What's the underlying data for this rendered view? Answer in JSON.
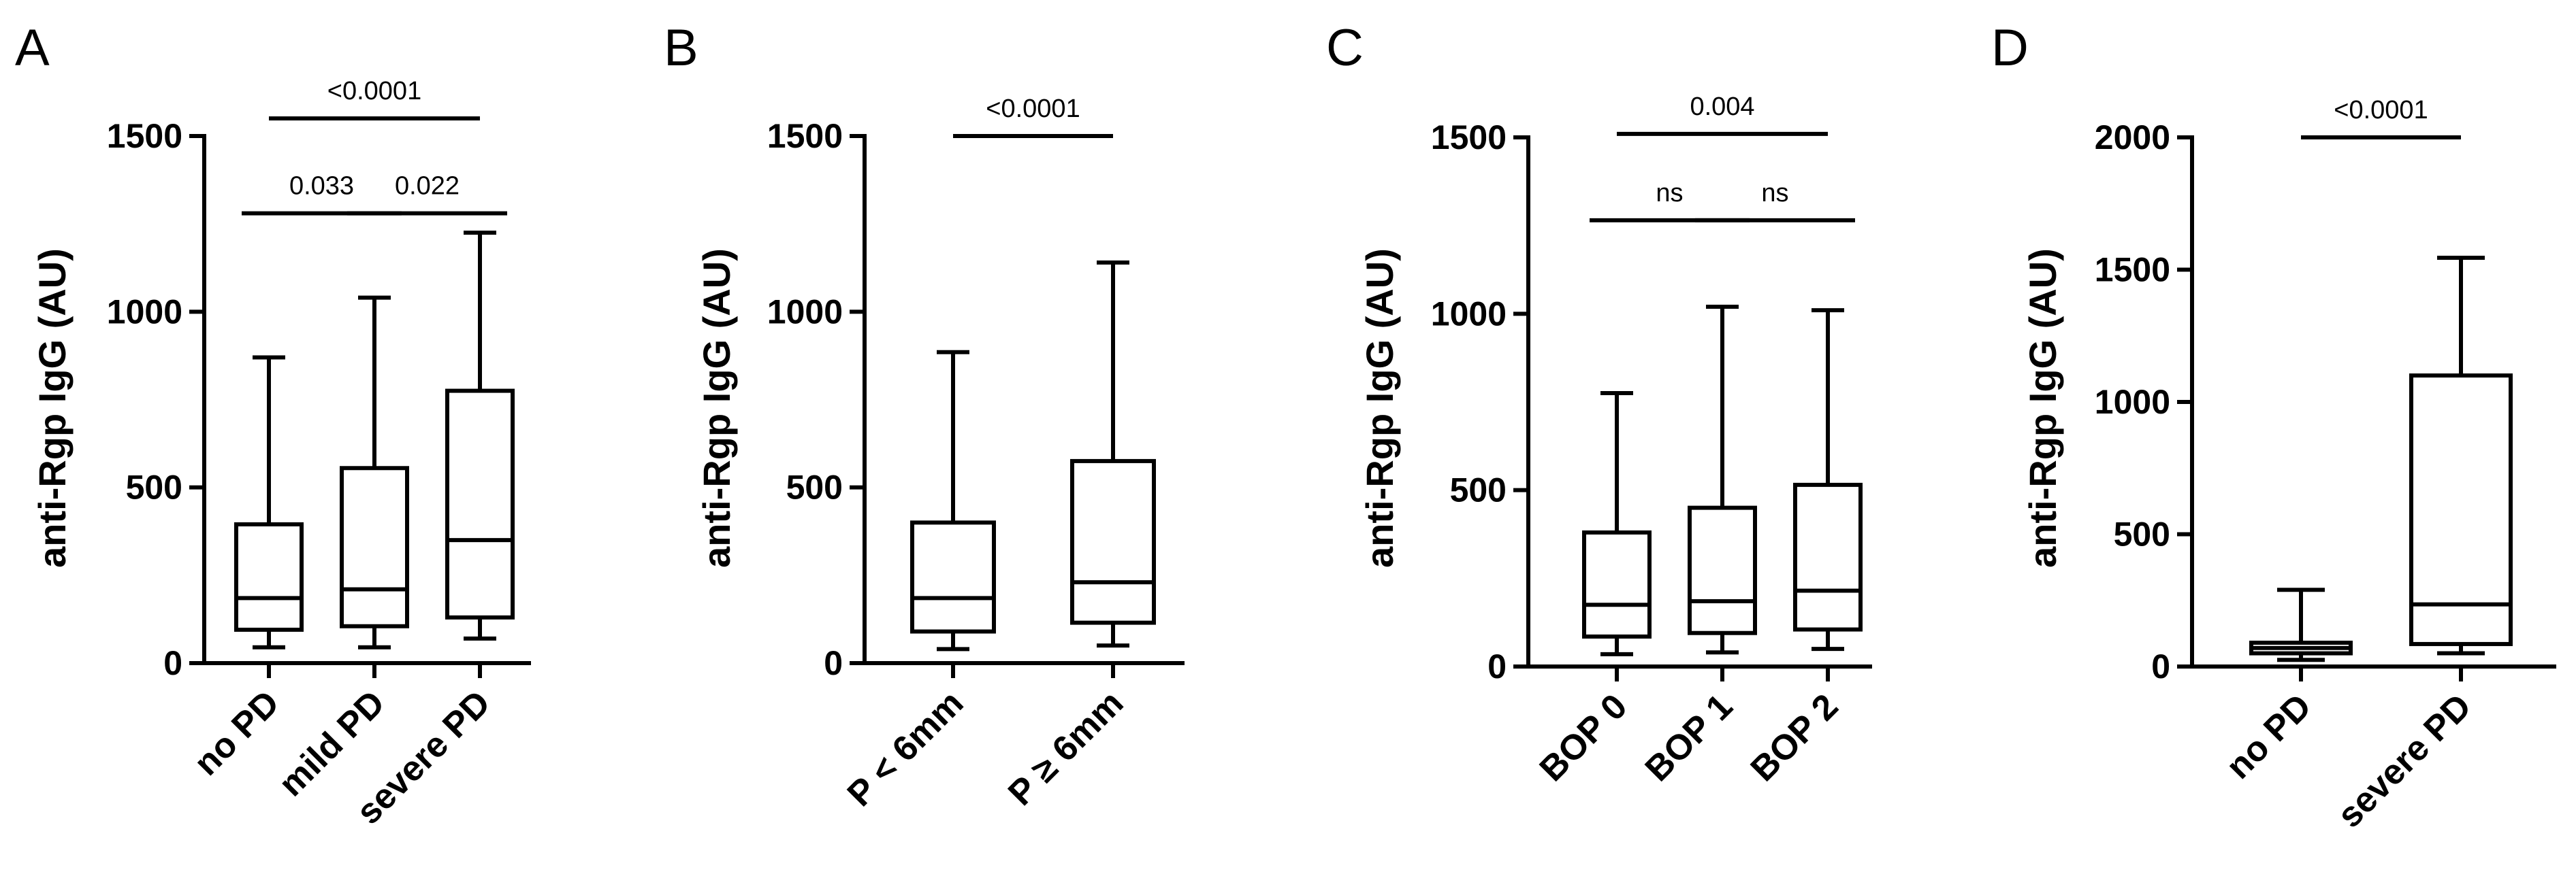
{
  "chart_data": [
    {
      "panel": "A",
      "type": "box",
      "ylabel": "anti-Rgp IgG (AU)",
      "ylim": [
        0,
        1500
      ],
      "yticks": [
        "0",
        "500",
        "1000",
        "1500"
      ],
      "categories": [
        "no PD",
        "mild PD",
        "severe PD"
      ],
      "boxes": [
        {
          "min": 45,
          "q1": 95,
          "median": 185,
          "q3": 395,
          "max": 870
        },
        {
          "min": 45,
          "q1": 105,
          "median": 210,
          "q3": 555,
          "max": 1040
        },
        {
          "min": 70,
          "q1": 130,
          "median": 350,
          "q3": 775,
          "max": 1225
        }
      ],
      "comparisons": [
        {
          "from": 0,
          "to": 2,
          "label": "<0.0001",
          "level": 1550
        },
        {
          "from": 0,
          "to": 1,
          "label": "0.033",
          "level": 1280
        },
        {
          "from": 1,
          "to": 2,
          "label": "0.022",
          "level": 1280
        }
      ]
    },
    {
      "panel": "B",
      "type": "box",
      "ylabel": "anti-Rgp IgG (AU)",
      "ylim": [
        0,
        1500
      ],
      "yticks": [
        "0",
        "500",
        "1000",
        "1500"
      ],
      "categories": [
        "P < 6mm",
        "P ≥ 6mm"
      ],
      "boxes": [
        {
          "min": 40,
          "q1": 90,
          "median": 185,
          "q3": 400,
          "max": 885
        },
        {
          "min": 50,
          "q1": 115,
          "median": 230,
          "q3": 575,
          "max": 1140
        }
      ],
      "comparisons": [
        {
          "from": 0,
          "to": 1,
          "label": "<0.0001",
          "level": 1500
        }
      ]
    },
    {
      "panel": "C",
      "type": "box",
      "ylabel": "anti-Rgp IgG (AU)",
      "ylim": [
        0,
        1500
      ],
      "yticks": [
        "0",
        "500",
        "1000",
        "1500"
      ],
      "categories": [
        "BOP 0",
        "BOP 1",
        "BOP 2"
      ],
      "boxes": [
        {
          "min": 35,
          "q1": 85,
          "median": 175,
          "q3": 380,
          "max": 775
        },
        {
          "min": 40,
          "q1": 95,
          "median": 185,
          "q3": 450,
          "max": 1020
        },
        {
          "min": 50,
          "q1": 105,
          "median": 215,
          "q3": 515,
          "max": 1010
        }
      ],
      "comparisons": [
        {
          "from": 0,
          "to": 2,
          "label": "0.004",
          "level": 1510
        },
        {
          "from": 0,
          "to": 1,
          "label": "ns",
          "level": 1265
        },
        {
          "from": 1,
          "to": 2,
          "label": "ns",
          "level": 1265
        }
      ]
    },
    {
      "panel": "D",
      "type": "box",
      "ylabel": "anti-Rgp IgG (AU)",
      "ylim": [
        0,
        2000
      ],
      "yticks": [
        "0",
        "500",
        "1000",
        "1500",
        "2000"
      ],
      "categories": [
        "no PD",
        "severe PD"
      ],
      "boxes": [
        {
          "min": 25,
          "q1": 50,
          "median": 70,
          "q3": 90,
          "max": 290
        },
        {
          "min": 50,
          "q1": 85,
          "median": 235,
          "q3": 1100,
          "max": 1545
        }
      ],
      "comparisons": [
        {
          "from": 0,
          "to": 1,
          "label": "<0.0001",
          "level": 2000
        }
      ]
    }
  ]
}
